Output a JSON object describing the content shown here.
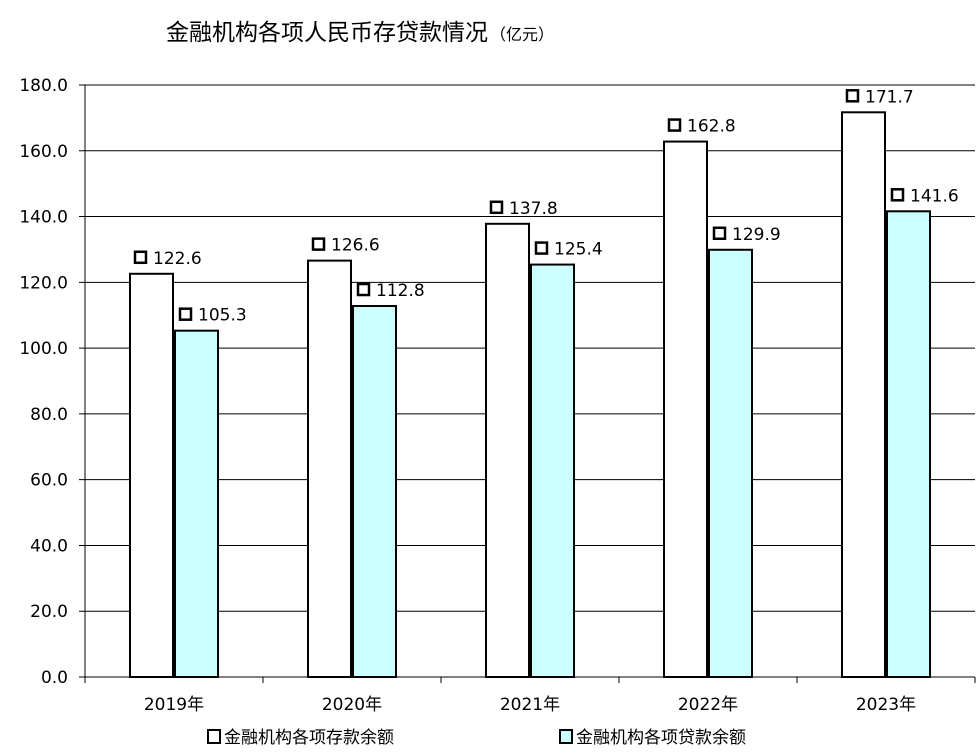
{
  "chart_data": {
    "type": "bar",
    "title": "金融机构各项人民币存贷款情况",
    "title_unit": "（亿元）",
    "categories": [
      "2019年",
      "2020年",
      "2021年",
      "2022年",
      "2023年"
    ],
    "series": [
      {
        "name": "金融机构各项存款余额",
        "values": [
          122.6,
          126.6,
          137.8,
          162.8,
          171.7
        ],
        "color": "#ffffff"
      },
      {
        "name": "金融机构各项贷款余额",
        "values": [
          105.3,
          112.8,
          125.4,
          129.9,
          141.6
        ],
        "color": "#ccffff"
      }
    ],
    "ylim": [
      0,
      180
    ],
    "yticks": [
      "0.0",
      "20.0",
      "40.0",
      "60.0",
      "80.0",
      "100.0",
      "120.0",
      "140.0",
      "160.0",
      "180.0"
    ],
    "data_labels": [
      [
        "122.6",
        "126.6",
        "137.8",
        "162.8",
        "171.7"
      ],
      [
        "105.3",
        "112.8",
        "125.4",
        "129.9",
        "141.6"
      ]
    ],
    "grid": true,
    "legend_position": "bottom"
  }
}
